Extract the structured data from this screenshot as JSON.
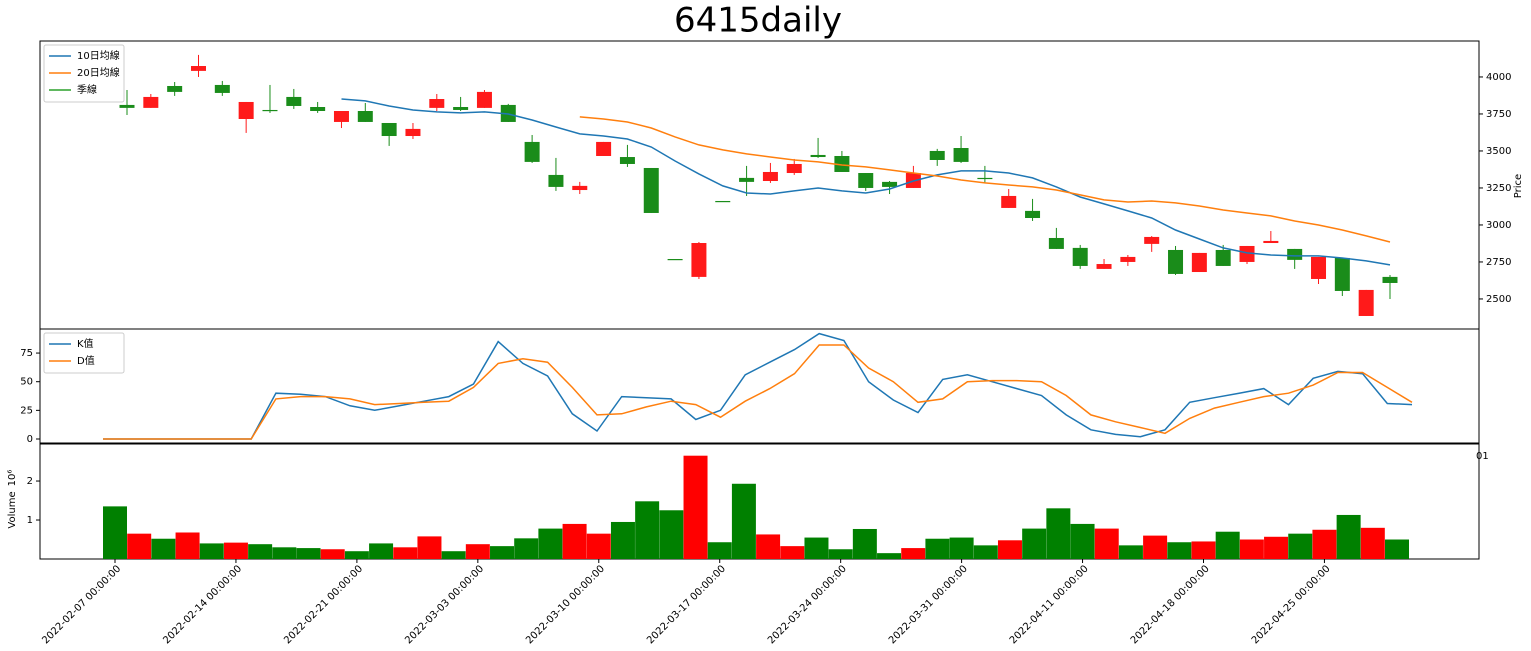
{
  "chart_data": [
    {
      "type": "candlestick",
      "title": "6415daily",
      "ylabel": "Price",
      "open": [
        3811,
        3791,
        3939,
        4041,
        3946,
        3716,
        3777,
        3865,
        3797,
        3696,
        3770,
        3689,
        3601,
        3791,
        3797,
        3791,
        3811,
        3561,
        3338,
        3236,
        3466,
        3459,
        3385,
        2770,
        2649,
        3162,
        3318,
        3297,
        3351,
        3473,
        3466,
        3351,
        3291,
        3250,
        3500,
        3520,
        3318,
        3115,
        3095,
        2912,
        2845,
        2703,
        2750,
        2872,
        2831,
        2682,
        2831,
        2750,
        2878,
        2838,
        2635,
        2777,
        2385,
        2649
      ],
      "high": [
        3912,
        3885,
        3966,
        4149,
        3973,
        3831,
        3946,
        3919,
        3831,
        3770,
        3824,
        3689,
        3689,
        3885,
        3865,
        3912,
        3818,
        3608,
        3453,
        3291,
        3561,
        3541,
        3385,
        2770,
        2885,
        3162,
        3399,
        3419,
        3446,
        3588,
        3500,
        3351,
        3297,
        3399,
        3514,
        3601,
        3399,
        3243,
        3176,
        2980,
        2865,
        2770,
        2797,
        2925,
        2858,
        2811,
        2865,
        2858,
        2959,
        2838,
        2784,
        2777,
        2561,
        2662
      ],
      "low": [
        3743,
        3791,
        3872,
        4000,
        3872,
        3622,
        3757,
        3784,
        3757,
        3655,
        3696,
        3534,
        3581,
        3770,
        3770,
        3791,
        3696,
        3419,
        3230,
        3209,
        3466,
        3392,
        3081,
        2770,
        2635,
        3162,
        3196,
        3284,
        3338,
        3453,
        3358,
        3230,
        3209,
        3250,
        3399,
        3419,
        3284,
        3115,
        3027,
        2838,
        2703,
        2703,
        2723,
        2818,
        2662,
        2682,
        2723,
        2736,
        2878,
        2703,
        2601,
        2520,
        2385,
        2500
      ],
      "close": [
        3791,
        3865,
        3899,
        4074,
        3892,
        3831,
        3770,
        3804,
        3770,
        3770,
        3696,
        3601,
        3649,
        3851,
        3777,
        3899,
        3696,
        3426,
        3257,
        3264,
        3561,
        3412,
        3081,
        2770,
        2878,
        3162,
        3291,
        3358,
        3412,
        3459,
        3358,
        3250,
        3257,
        3351,
        3439,
        3426,
        3318,
        3196,
        3047,
        2838,
        2723,
        2736,
        2784,
        2919,
        2669,
        2811,
        2723,
        2858,
        2892,
        2764,
        2784,
        2554,
        2561,
        2608
      ],
      "up_color": "#ff1a1a",
      "down_color": "#1a8c1a",
      "series": [
        {
          "name": "10日均線",
          "color": "#1f77b4",
          "values": [
            null,
            null,
            null,
            null,
            null,
            null,
            null,
            null,
            null,
            3851,
            3838,
            3804,
            3777,
            3764,
            3757,
            3764,
            3750,
            3709,
            3662,
            3615,
            3601,
            3581,
            3527,
            3432,
            3345,
            3264,
            3216,
            3209,
            3230,
            3250,
            3230,
            3216,
            3243,
            3297,
            3338,
            3365,
            3365,
            3351,
            3318,
            3257,
            3189,
            3142,
            3095,
            3047,
            2966,
            2905,
            2845,
            2811,
            2797,
            2791,
            2791,
            2777,
            2757,
            2730
          ]
        },
        {
          "name": "20日均線",
          "color": "#ff7f0e",
          "values": [
            null,
            null,
            null,
            null,
            null,
            null,
            null,
            null,
            null,
            null,
            null,
            null,
            null,
            null,
            null,
            null,
            null,
            null,
            null,
            3730,
            3716,
            3696,
            3655,
            3595,
            3541,
            3507,
            3480,
            3459,
            3439,
            3426,
            3405,
            3392,
            3372,
            3351,
            3331,
            3304,
            3284,
            3270,
            3257,
            3236,
            3203,
            3169,
            3155,
            3162,
            3149,
            3128,
            3101,
            3081,
            3061,
            3027,
            3000,
            2966,
            2926,
            2885
          ]
        },
        {
          "name": "季線",
          "color": "#2ca02c",
          "values": [
            null,
            null,
            null,
            null,
            null,
            null,
            null,
            null,
            null,
            null,
            null,
            null,
            null,
            null,
            null,
            null,
            null,
            null,
            null,
            null,
            null,
            null,
            null,
            null,
            null,
            null,
            null,
            null,
            null,
            null,
            null,
            null,
            null,
            null,
            null,
            null,
            null,
            null,
            null,
            null,
            null,
            null,
            null,
            null,
            null,
            null,
            null,
            null,
            null,
            null,
            null,
            null,
            null,
            null
          ]
        }
      ],
      "ylim": [
        2297,
        4243
      ],
      "yticks": [
        2500,
        2750,
        3000,
        3250,
        3500,
        3750,
        4000
      ],
      "legend": "upper left"
    },
    {
      "type": "line",
      "series": [
        {
          "name": "K值",
          "color": "#1f77b4",
          "values": [
            0,
            0,
            0,
            0,
            0,
            0,
            0,
            40,
            39,
            37,
            29,
            25,
            29,
            33,
            37,
            48,
            85,
            66,
            55,
            22,
            7,
            37,
            36,
            35,
            17,
            25,
            56,
            67,
            78,
            92,
            86,
            50,
            34,
            23,
            52,
            56,
            50,
            44,
            38,
            21,
            8,
            4,
            2,
            8,
            32,
            36,
            40,
            44,
            30,
            53,
            59,
            57,
            31,
            30
          ]
        },
        {
          "name": "D值",
          "color": "#ff7f0e",
          "values": [
            0,
            0,
            0,
            0,
            0,
            0,
            0,
            35,
            37,
            37,
            35,
            30,
            31,
            32,
            33,
            45,
            66,
            70,
            67,
            45,
            21,
            22,
            28,
            33,
            30,
            19,
            33,
            44,
            57,
            82,
            82,
            62,
            50,
            32,
            35,
            50,
            51,
            51,
            50,
            38,
            21,
            15,
            10,
            5,
            18,
            27,
            32,
            37,
            40,
            47,
            58,
            58,
            45,
            32
          ]
        }
      ],
      "ylim": [
        -3.5,
        96
      ],
      "yticks": [
        0,
        25,
        50,
        75
      ],
      "legend": "upper left",
      "annotation": "01"
    },
    {
      "type": "bar",
      "ylabel": "Volume",
      "offset_label": "10⁶",
      "categories": [
        "2022-02-07 00:00:00",
        null,
        null,
        null,
        null,
        "2022-02-14 00:00:00",
        null,
        null,
        null,
        null,
        "2022-02-21 00:00:00",
        null,
        null,
        null,
        null,
        "2022-03-03 00:00:00",
        null,
        null,
        null,
        null,
        "2022-03-10 00:00:00",
        null,
        null,
        null,
        null,
        "2022-03-17 00:00:00",
        null,
        null,
        null,
        null,
        "2022-03-24 00:00:00",
        null,
        null,
        null,
        null,
        "2022-03-31 00:00:00",
        null,
        null,
        null,
        null,
        "2022-04-11 00:00:00",
        null,
        null,
        null,
        null,
        "2022-04-18 00:00:00",
        null,
        null,
        null,
        null,
        "2022-04-25 00:00:00",
        null,
        null,
        null
      ],
      "values": [
        1.35,
        0.65,
        0.52,
        0.68,
        0.4,
        0.42,
        0.38,
        0.3,
        0.28,
        0.25,
        0.2,
        0.4,
        0.3,
        0.58,
        0.2,
        0.38,
        0.33,
        0.53,
        0.78,
        0.9,
        0.65,
        0.95,
        1.48,
        1.25,
        2.65,
        0.43,
        1.93,
        0.63,
        0.33,
        0.55,
        0.25,
        0.77,
        0.15,
        0.28,
        0.52,
        0.55,
        0.35,
        0.48,
        0.78,
        1.3,
        0.9,
        0.78,
        0.35,
        0.6,
        0.43,
        0.45,
        0.7,
        0.5,
        0.57,
        0.65,
        0.75,
        1.13,
        0.8,
        0.5
      ],
      "colors": [
        "#008000",
        "#ff0000",
        "#008000",
        "#ff0000",
        "#008000",
        "#ff0000",
        "#008000",
        "#008000",
        "#008000",
        "#ff0000",
        "#008000",
        "#008000",
        "#ff0000",
        "#ff0000",
        "#008000",
        "#ff0000",
        "#008000",
        "#008000",
        "#008000",
        "#ff0000",
        "#ff0000",
        "#008000",
        "#008000",
        "#008000",
        "#ff0000",
        "#008000",
        "#008000",
        "#ff0000",
        "#ff0000",
        "#008000",
        "#008000",
        "#008000",
        "#008000",
        "#ff0000",
        "#008000",
        "#008000",
        "#008000",
        "#ff0000",
        "#008000",
        "#008000",
        "#008000",
        "#ff0000",
        "#008000",
        "#ff0000",
        "#008000",
        "#ff0000",
        "#008000",
        "#ff0000",
        "#ff0000",
        "#008000",
        "#ff0000",
        "#008000",
        "#ff0000",
        "#008000"
      ],
      "ylim": [
        0,
        2.95
      ],
      "yticks": [
        1,
        2
      ]
    }
  ]
}
